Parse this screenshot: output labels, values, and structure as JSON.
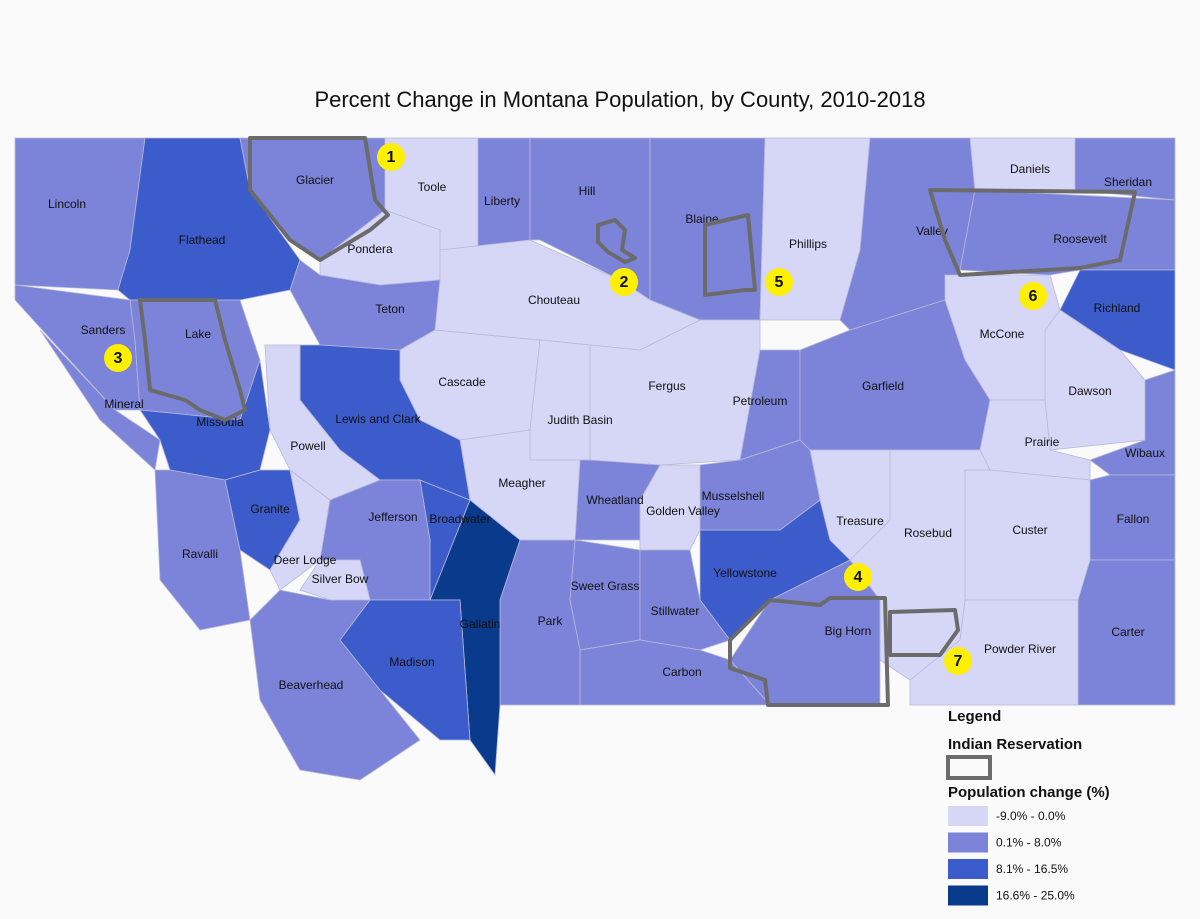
{
  "title": "Percent Change in Montana Population, by County, 2010-2018",
  "counties": [
    {
      "name": "Lincoln",
      "color": "#7b84d8"
    },
    {
      "name": "Flathead",
      "color": "#3c5ccc"
    },
    {
      "name": "Glacier",
      "color": "#7b84d8"
    },
    {
      "name": "Toole",
      "color": "#d6d6f6"
    },
    {
      "name": "Pondera",
      "color": "#d6d6f6"
    },
    {
      "name": "Liberty",
      "color": "#7b84d8"
    },
    {
      "name": "Hill",
      "color": "#7b84d8"
    },
    {
      "name": "Blaine",
      "color": "#7b84d8"
    },
    {
      "name": "Phillips",
      "color": "#d6d6f6"
    },
    {
      "name": "Valley",
      "color": "#7b84d8"
    },
    {
      "name": "Daniels",
      "color": "#d6d6f6"
    },
    {
      "name": "Sheridan",
      "color": "#7b84d8"
    },
    {
      "name": "Roosevelt",
      "color": "#7b84d8"
    },
    {
      "name": "Richland",
      "color": "#3c5ccc"
    },
    {
      "name": "McCone",
      "color": "#d6d6f6"
    },
    {
      "name": "Dawson",
      "color": "#d6d6f6"
    },
    {
      "name": "Sanders",
      "color": "#7b84d8"
    },
    {
      "name": "Lake",
      "color": "#7b84d8"
    },
    {
      "name": "Mineral",
      "color": "#7b84d8"
    },
    {
      "name": "Missoula",
      "color": "#3c5ccc"
    },
    {
      "name": "Teton",
      "color": "#7b84d8"
    },
    {
      "name": "Cascade",
      "color": "#d6d6f6"
    },
    {
      "name": "Chouteau",
      "color": "#d6d6f6"
    },
    {
      "name": "Fergus",
      "color": "#d6d6f6"
    },
    {
      "name": "Judith Basin",
      "color": "#d6d6f6"
    },
    {
      "name": "Petroleum",
      "color": "#7b84d8"
    },
    {
      "name": "Garfield",
      "color": "#7b84d8"
    },
    {
      "name": "Prairie",
      "color": "#d6d6f6"
    },
    {
      "name": "Wibaux",
      "color": "#7b84d8"
    },
    {
      "name": "Fallon",
      "color": "#7b84d8"
    },
    {
      "name": "Carter",
      "color": "#7b84d8"
    },
    {
      "name": "Custer",
      "color": "#d6d6f6"
    },
    {
      "name": "Powder River",
      "color": "#d6d6f6"
    },
    {
      "name": "Rosebud",
      "color": "#d6d6f6"
    },
    {
      "name": "Treasure",
      "color": "#d6d6f6"
    },
    {
      "name": "Big Horn",
      "color": "#7b84d8"
    },
    {
      "name": "Yellowstone",
      "color": "#3c5ccc"
    },
    {
      "name": "Musselshell",
      "color": "#7b84d8"
    },
    {
      "name": "Golden Valley",
      "color": "#d6d6f6"
    },
    {
      "name": "Wheatland",
      "color": "#7b84d8"
    },
    {
      "name": "Meagher",
      "color": "#d6d6f6"
    },
    {
      "name": "Sweet Grass",
      "color": "#7b84d8"
    },
    {
      "name": "Stillwater",
      "color": "#7b84d8"
    },
    {
      "name": "Carbon",
      "color": "#7b84d8"
    },
    {
      "name": "Park",
      "color": "#7b84d8"
    },
    {
      "name": "Gallatin",
      "color": "#0a3a8c"
    },
    {
      "name": "Broadwater",
      "color": "#3c5ccc"
    },
    {
      "name": "Lewis and Clark",
      "color": "#3c5ccc"
    },
    {
      "name": "Powell",
      "color": "#d6d6f6"
    },
    {
      "name": "Granite",
      "color": "#3c5ccc"
    },
    {
      "name": "Ravalli",
      "color": "#7b84d8"
    },
    {
      "name": "Deer Lodge",
      "color": "#d6d6f6"
    },
    {
      "name": "Jefferson",
      "color": "#7b84d8"
    },
    {
      "name": "Silver Bow",
      "color": "#d6d6f6"
    },
    {
      "name": "Beaverhead",
      "color": "#7b84d8"
    },
    {
      "name": "Madison",
      "color": "#3c5ccc"
    }
  ],
  "reservation_markers": [
    "1",
    "2",
    "3",
    "4",
    "5",
    "6",
    "7"
  ],
  "legend": {
    "title": "Legend",
    "reservation_label": "Indian Reservation",
    "population_title": "Population change (%)",
    "classes": [
      {
        "label": "-9.0% - 0.0%",
        "color": "#d6d6f6"
      },
      {
        "label": "0.1% - 8.0%",
        "color": "#7b84d8"
      },
      {
        "label": "8.1% - 16.5%",
        "color": "#3c5ccc"
      },
      {
        "label": "16.6% - 25.0%",
        "color": "#0a3a8c"
      }
    ]
  }
}
